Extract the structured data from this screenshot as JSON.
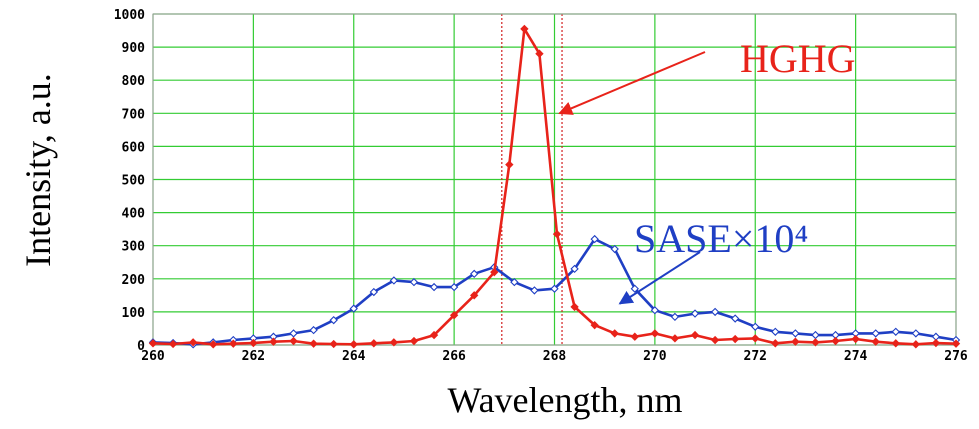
{
  "chart_data": {
    "type": "line",
    "xlabel": "Wavelength, nm",
    "ylabel": "Intensity, a.u.",
    "xlim": [
      260,
      276
    ],
    "ylim": [
      0,
      1000
    ],
    "xticks": [
      260,
      262,
      264,
      266,
      268,
      270,
      272,
      274,
      276
    ],
    "yticks": [
      0,
      100,
      200,
      300,
      400,
      500,
      600,
      700,
      800,
      900,
      1000
    ],
    "grid": true,
    "colors": {
      "hghg": "#e8231a",
      "sase": "#1f3fc4",
      "grid": "#33cc33",
      "marker_lines": "#d22020"
    },
    "vertical_markers": [
      266.95,
      268.15
    ],
    "series": [
      {
        "name": "HGHG",
        "marker": "filled-diamond",
        "x": [
          260.0,
          260.4,
          260.8,
          261.2,
          261.6,
          262.0,
          262.4,
          262.8,
          263.2,
          263.6,
          264.0,
          264.4,
          264.8,
          265.2,
          265.6,
          266.0,
          266.4,
          266.8,
          267.1,
          267.4,
          267.7,
          268.05,
          268.4,
          268.8,
          269.2,
          269.6,
          270.0,
          270.4,
          270.8,
          271.2,
          271.6,
          272.0,
          272.4,
          272.8,
          273.2,
          273.6,
          274.0,
          274.4,
          274.8,
          275.2,
          275.6,
          276.0
        ],
        "y": [
          5,
          3,
          8,
          2,
          4,
          6,
          10,
          12,
          4,
          3,
          2,
          5,
          8,
          12,
          30,
          90,
          150,
          220,
          545,
          955,
          880,
          335,
          115,
          60,
          35,
          25,
          35,
          20,
          30,
          15,
          18,
          20,
          5,
          10,
          8,
          12,
          18,
          10,
          5,
          2,
          6,
          4
        ]
      },
      {
        "name": "SASE×10⁴",
        "marker": "open-diamond",
        "x": [
          260.0,
          260.4,
          260.8,
          261.2,
          261.6,
          262.0,
          262.4,
          262.8,
          263.2,
          263.6,
          264.0,
          264.4,
          264.8,
          265.2,
          265.6,
          266.0,
          266.4,
          266.8,
          267.2,
          267.6,
          268.0,
          268.4,
          268.8,
          269.2,
          269.6,
          270.0,
          270.4,
          270.8,
          271.2,
          271.6,
          272.0,
          272.4,
          272.8,
          273.2,
          273.6,
          274.0,
          274.4,
          274.8,
          275.2,
          275.6,
          276.0
        ],
        "y": [
          8,
          6,
          2,
          8,
          15,
          20,
          25,
          35,
          45,
          75,
          110,
          160,
          195,
          190,
          175,
          175,
          215,
          235,
          190,
          165,
          170,
          230,
          320,
          290,
          170,
          105,
          85,
          95,
          100,
          80,
          55,
          40,
          35,
          30,
          30,
          35,
          35,
          40,
          35,
          25,
          15
        ]
      }
    ],
    "annotations": [
      {
        "text": "HGHG",
        "series": "HGHG",
        "arrow_to": [
          268.1,
          700
        ]
      },
      {
        "text": "SASE×10⁴",
        "series": "SASE×10⁴",
        "arrow_to": [
          269.3,
          125
        ]
      }
    ]
  }
}
